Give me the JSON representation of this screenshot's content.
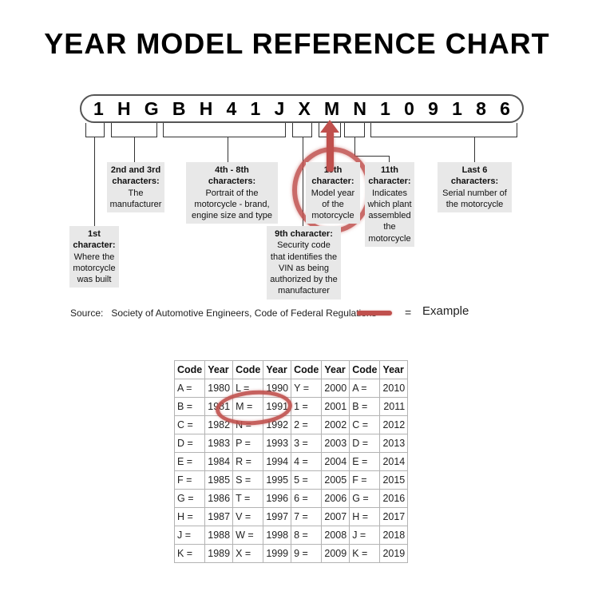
{
  "title": "YEAR MODEL REFERENCE CHART",
  "vin": {
    "characters": [
      "1",
      "H",
      "G",
      "B",
      "H",
      "4",
      "1",
      "J",
      "X",
      "M",
      "N",
      "1",
      "0",
      "9",
      "1",
      "8",
      "6"
    ]
  },
  "callouts": {
    "first": {
      "heading": "1st\ncharacter:",
      "body": "Where the\nmotorcycle\nwas built"
    },
    "second_third": {
      "heading": "2nd and 3rd\ncharacters:",
      "body": "The\nmanufacturer"
    },
    "fourth_eighth": {
      "heading": "4th - 8th\ncharacters:",
      "body": "Portrait of the\nmotorcycle - brand,\nengine size and type"
    },
    "ninth": {
      "heading": "9th character:",
      "body": "Security code\nthat identifies the\nVIN as being\nauthorized by the\nmanufacturer"
    },
    "tenth": {
      "heading": "10th\ncharacter:",
      "body": "Model year\nof the\nmotorcycle"
    },
    "eleventh": {
      "heading": "11th\ncharacter:",
      "body": "Indicates\nwhich plant\nassembled\nthe\nmotorcycle"
    },
    "last_six": {
      "heading": "Last 6\ncharacters:",
      "body": "Serial number of\nthe motorcycle"
    }
  },
  "legend": {
    "source_label": "Source:",
    "source_text": "Society of Automotive Engineers, Code of Federal Regulations",
    "equals": "=",
    "example_label": "Example"
  },
  "year_table": {
    "headers": [
      "Code",
      "Year",
      "Code",
      "Year",
      "Code",
      "Year",
      "Code",
      "Year"
    ],
    "rows": [
      [
        "A =",
        "1980",
        "L =",
        "1990",
        "Y =",
        "2000",
        "A =",
        "2010"
      ],
      [
        "B =",
        "1981",
        "M =",
        "1991",
        "1 =",
        "2001",
        "B =",
        "2011"
      ],
      [
        "C =",
        "1982",
        "N =",
        "1992",
        "2 =",
        "2002",
        "C =",
        "2012"
      ],
      [
        "D =",
        "1983",
        "P =",
        "1993",
        "3 =",
        "2003",
        "D =",
        "2013"
      ],
      [
        "E =",
        "1984",
        "R =",
        "1994",
        "4 =",
        "2004",
        "E =",
        "2014"
      ],
      [
        "F =",
        "1985",
        "S =",
        "1995",
        "5 =",
        "2005",
        "F =",
        "2015"
      ],
      [
        "G =",
        "1986",
        "T =",
        "1996",
        "6 =",
        "2006",
        "G =",
        "2016"
      ],
      [
        "H =",
        "1987",
        "V =",
        "1997",
        "7 =",
        "2007",
        "H =",
        "2017"
      ],
      [
        "J =",
        "1988",
        "W =",
        "1998",
        "8 =",
        "2008",
        "J =",
        "2018"
      ],
      [
        "K =",
        "1989",
        "X =",
        "1999",
        "9 =",
        "2009",
        "K =",
        "2019"
      ]
    ],
    "circled_code": "M =",
    "circled_year": "1991"
  },
  "colors": {
    "accent_red": "#c0504d",
    "callout_bg": "#e8e8e8"
  }
}
